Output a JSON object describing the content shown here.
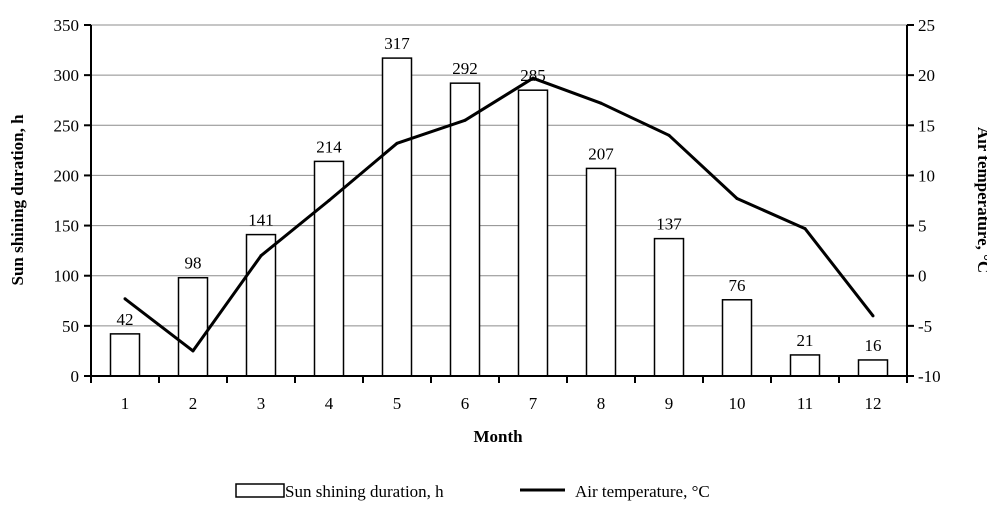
{
  "chart_data": {
    "type": "bar",
    "xlabel": "Month",
    "ylabel": "Sun shining duration, h",
    "y2label": "Air temperature, °C",
    "categories": [
      "1",
      "2",
      "3",
      "4",
      "5",
      "6",
      "7",
      "8",
      "9",
      "10",
      "11",
      "12"
    ],
    "ylim": [
      0,
      350
    ],
    "yticks": [
      0,
      50,
      100,
      150,
      200,
      250,
      300,
      350
    ],
    "y2lim": [
      -10,
      25
    ],
    "y2ticks": [
      -10,
      -5,
      0,
      5,
      10,
      15,
      20,
      25
    ],
    "grid": "horizontal",
    "legend_position": "bottom",
    "series": [
      {
        "name": "Sun shining duration, h",
        "type": "bar",
        "axis": "left",
        "values": [
          42,
          98,
          141,
          214,
          317,
          292,
          285,
          207,
          137,
          76,
          21,
          16
        ],
        "data_labels": [
          "42",
          "98",
          "141",
          "214",
          "317",
          "292",
          "285",
          "207",
          "137",
          "76",
          "21",
          "16"
        ],
        "color": "#ffffff",
        "stroke": "#000000"
      },
      {
        "name": "Air temperature, °C",
        "type": "line",
        "axis": "right",
        "values": [
          -2.3,
          -7.5,
          2.0,
          7.5,
          13.2,
          15.5,
          19.7,
          17.2,
          14.0,
          7.7,
          4.7,
          -4.0
        ],
        "color": "#000000"
      }
    ]
  }
}
